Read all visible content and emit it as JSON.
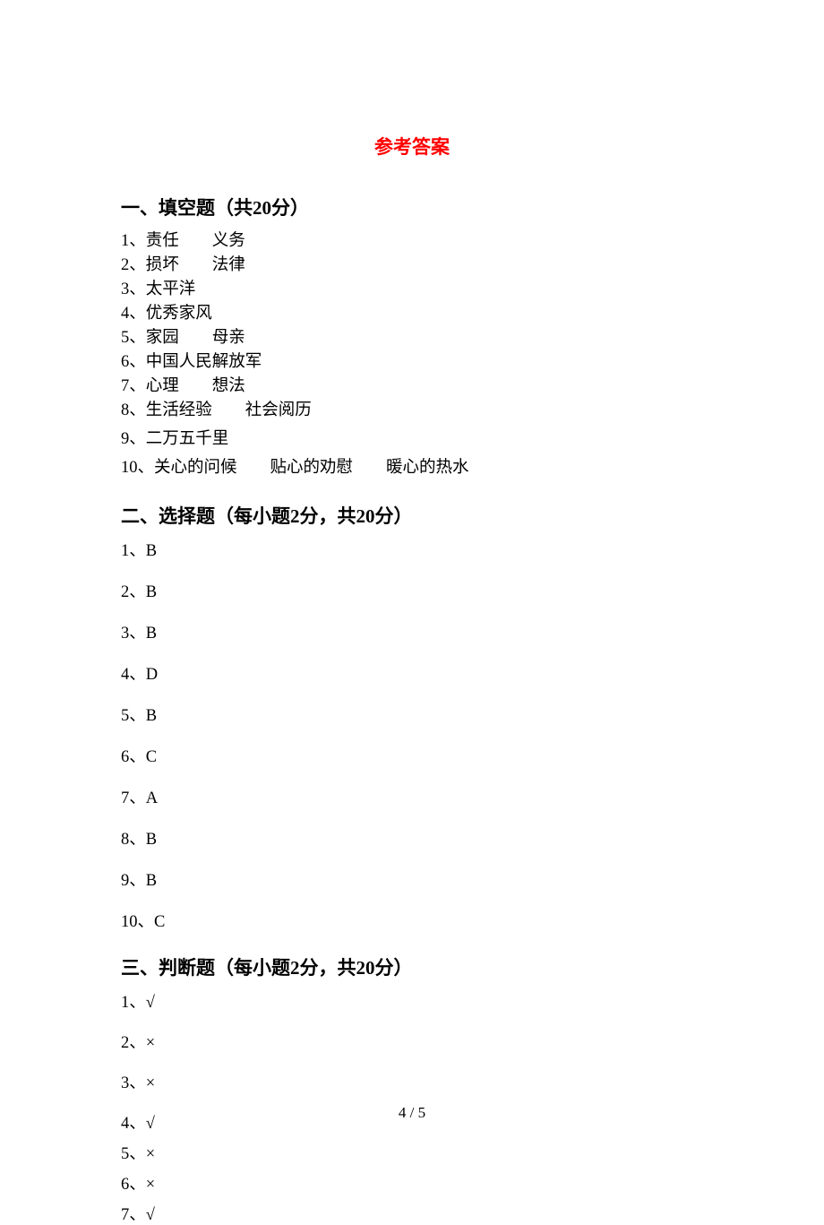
{
  "title": "参考答案",
  "section1": {
    "header": "一、填空题（共20分）",
    "items": [
      "1、责任　　义务",
      "2、损坏　　法律",
      "3、太平洋",
      "4、优秀家风",
      "5、家园　　母亲",
      "6、中国人民解放军",
      "7、心理　　想法",
      "8、生活经验　　社会阅历",
      "9、二万五千里",
      "10、关心的问候　　贴心的劝慰　　暖心的热水"
    ]
  },
  "section2": {
    "header": "二、选择题（每小题2分，共20分）",
    "items": [
      "1、B",
      "2、B",
      "3、B",
      "4、D",
      "5、B",
      "6、C",
      "7、A",
      "8、B",
      "9、B",
      "10、C"
    ]
  },
  "section3": {
    "header": "三、判断题（每小题2分，共20分）",
    "items": [
      "1、√",
      "2、×",
      "3、×",
      "4、√",
      "5、×",
      "6、×",
      "7、√"
    ]
  },
  "pageNumber": "4 / 5",
  "colors": {
    "title_color": "#ff0000",
    "text_color": "#000000",
    "background_color": "#ffffff"
  },
  "typography": {
    "title_fontsize": 21,
    "header_fontsize": 21,
    "body_fontsize": 18.5,
    "font_family": "SimSun"
  }
}
